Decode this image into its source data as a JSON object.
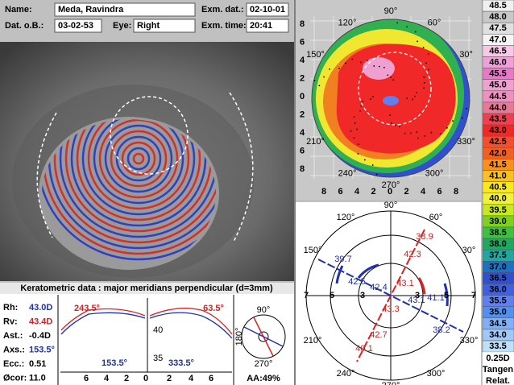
{
  "header": {
    "name_label": "Name:",
    "name": "Meda, Ravindra",
    "dob_label": "Dat. o.B.:",
    "dob": "03-02-53",
    "eye_label": "Eye:",
    "eye": "Right",
    "date_label": "Exm. dat.:",
    "date": "02-10-01",
    "time_label": "Exm. time:",
    "time": "20:41"
  },
  "topography": {
    "angles": [
      "90°",
      "120°",
      "60°",
      "150°",
      "30°",
      "210°",
      "330°",
      "240°",
      "300°",
      "270°"
    ],
    "axis_labels": [
      "8",
      "6",
      "4",
      "2",
      "0",
      "2",
      "4",
      "6",
      "8"
    ]
  },
  "ring_map": {
    "angles": [
      "90°",
      "120°",
      "60°",
      "150°",
      "30°",
      "210°",
      "330°",
      "240°",
      "300°",
      "270°"
    ],
    "ring_labels": [
      "7",
      "5",
      "3",
      "3",
      "5",
      "7"
    ],
    "readings": [
      "38.9",
      "42.3",
      "39.7",
      "42.5",
      "42.4",
      "43.1",
      "43.1",
      "41.1",
      "38.2",
      "43.3",
      "42.7",
      "40.1"
    ]
  },
  "keratometric": {
    "title": "Keratometric data : major meridians perpendicular (d=3mm)",
    "rows": [
      [
        "Rh:",
        "43.0D"
      ],
      [
        "Rv:",
        "43.4D"
      ],
      [
        "Ast.:",
        "-0.4D"
      ],
      [
        "Axs.:",
        "153.5°"
      ],
      [
        "Ecc.:",
        "0.51"
      ],
      [
        "Øcor:",
        "11.0"
      ]
    ],
    "steep_left": "243.5°",
    "steep_right": "63.5°",
    "flat_left": "153.5°",
    "flat_right": "333.5°",
    "yticks": [
      "40",
      "35"
    ],
    "xticks": [
      "6",
      "4",
      "2",
      "0",
      "2",
      "4",
      "6"
    ],
    "compass": [
      "90°",
      "180°",
      "270°"
    ],
    "aa": "AA:49%"
  },
  "scale": {
    "values": [
      "48.5",
      "48.0",
      "47.5",
      "47.0",
      "46.5",
      "46.0",
      "45.5",
      "45.0",
      "44.5",
      "44.0",
      "43.5",
      "43.0",
      "42.5",
      "42.0",
      "41.5",
      "41.0",
      "40.5",
      "40.0",
      "39.5",
      "39.0",
      "38.5",
      "38.0",
      "37.5",
      "37.0",
      "36.5",
      "36.0",
      "35.5",
      "35.0",
      "34.5",
      "34.0",
      "33.5"
    ],
    "colors": [
      "#f0f0f0",
      "#c8c8c8",
      "#e0e0e0",
      "#f4f4f4",
      "#f8c8e8",
      "#f0a0d8",
      "#e878c8",
      "#f0a0d0",
      "#f090c0",
      "#e87898",
      "#f04050",
      "#f02828",
      "#f05030",
      "#f06020",
      "#f89020",
      "#f8c020",
      "#f8e820",
      "#f0f040",
      "#c8e820",
      "#80d020",
      "#40c040",
      "#20a860",
      "#20a8a0",
      "#2070c0",
      "#3050d0",
      "#4060e0",
      "#6080f0",
      "#5090f0",
      "#80b0f8",
      "#a0c8f8",
      "#c0e0f8"
    ],
    "unit": "0.25D",
    "mode": "Tangen",
    "ref": "Relat."
  }
}
